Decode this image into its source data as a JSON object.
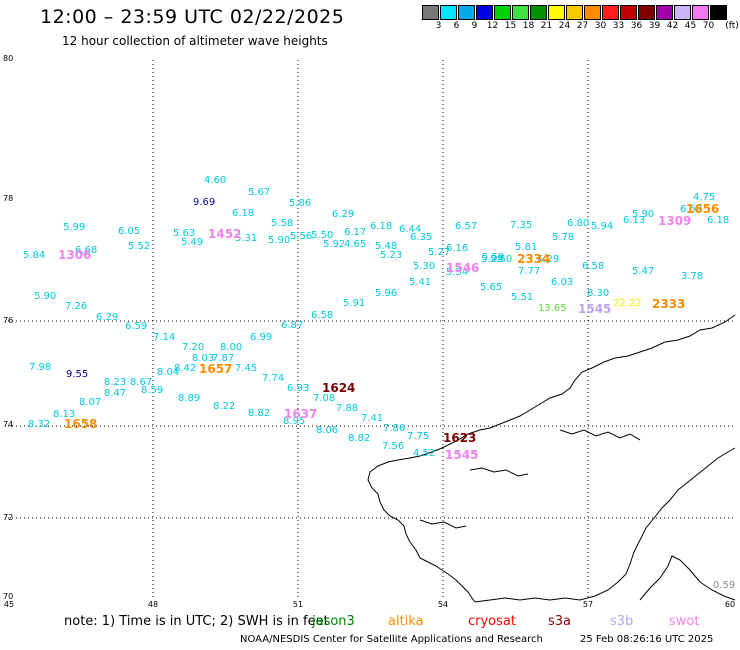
{
  "title": "12:00 – 23:59 UTC 02/22/2025",
  "subtitle": "12 hour collection of altimeter wave heights",
  "legend": {
    "unit": "(ft)",
    "bins": [
      {
        "label": "3",
        "color": "#787878"
      },
      {
        "label": "6",
        "color": "#00e4ff"
      },
      {
        "label": "9",
        "color": "#00a8f0"
      },
      {
        "label": "12",
        "color": "#0000e0"
      },
      {
        "label": "15",
        "color": "#00d000"
      },
      {
        "label": "18",
        "color": "#40e040"
      },
      {
        "label": "21",
        "color": "#009000"
      },
      {
        "label": "24",
        "color": "#ffff00"
      },
      {
        "label": "27",
        "color": "#f8c800"
      },
      {
        "label": "30",
        "color": "#ff8c00"
      },
      {
        "label": "33",
        "color": "#ff1e1e"
      },
      {
        "label": "36",
        "color": "#c00000"
      },
      {
        "label": "39",
        "color": "#800000"
      },
      {
        "label": "42",
        "color": "#a000a8"
      },
      {
        "label": "45",
        "color": "#ccb4f8"
      },
      {
        "label": "70",
        "color": "#f078f0"
      },
      {
        "label": "",
        "color": "#000000"
      }
    ]
  },
  "axes": {
    "lat_labels": [
      "80",
      "78",
      "76",
      "74",
      "72",
      "70"
    ],
    "lon_labels": [
      "45",
      "48",
      "51",
      "54",
      "57",
      "60"
    ]
  },
  "colors": {
    "cyan": "#00c8e0",
    "navy": "#00009c",
    "green": "#5adc3c",
    "orange": "#ff8c00",
    "yellow": "#f0f000",
    "maroon": "#7a0000",
    "pink": "#ee82ee",
    "lavender": "#b9a4f4",
    "gray": "#8c8c8c"
  },
  "wave_heights": [
    {
      "v": "4.60",
      "c": "cyan"
    },
    {
      "v": "5.67",
      "c": "cyan"
    },
    {
      "v": "9.69",
      "c": "navy"
    },
    {
      "v": "6.18",
      "c": "cyan"
    },
    {
      "v": "5.86",
      "c": "cyan"
    },
    {
      "v": "5.58",
      "c": "cyan"
    },
    {
      "v": "6.29",
      "c": "cyan"
    },
    {
      "v": "4.75",
      "c": "cyan"
    },
    {
      "v": "6.52",
      "c": "cyan"
    },
    {
      "v": "5.90",
      "c": "cyan"
    },
    {
      "v": "6.80",
      "c": "cyan"
    },
    {
      "v": "7.35",
      "c": "cyan"
    },
    {
      "v": "5.94",
      "c": "cyan"
    },
    {
      "v": "6.13",
      "c": "cyan"
    },
    {
      "v": "6.18",
      "c": "cyan"
    },
    {
      "v": "5.99",
      "c": "cyan"
    },
    {
      "v": "6.05",
      "c": "cyan"
    },
    {
      "v": "5.63",
      "c": "cyan"
    },
    {
      "v": "5.31",
      "c": "cyan"
    },
    {
      "v": "5.90",
      "c": "cyan"
    },
    {
      "v": "5.56",
      "c": "cyan"
    },
    {
      "v": "5.50",
      "c": "cyan"
    },
    {
      "v": "6.17",
      "c": "cyan"
    },
    {
      "v": "6.18",
      "c": "cyan"
    },
    {
      "v": "6.44",
      "c": "cyan"
    },
    {
      "v": "6.57",
      "c": "cyan"
    },
    {
      "v": "5.78",
      "c": "cyan"
    },
    {
      "v": "6.68",
      "c": "cyan"
    },
    {
      "v": "5.52",
      "c": "cyan"
    },
    {
      "v": "5.49",
      "c": "cyan"
    },
    {
      "v": "5.92",
      "c": "cyan"
    },
    {
      "v": "4.65",
      "c": "cyan"
    },
    {
      "v": "5.48",
      "c": "cyan"
    },
    {
      "v": "6.35",
      "c": "cyan"
    },
    {
      "v": "6.16",
      "c": "cyan"
    },
    {
      "v": "5.81",
      "c": "cyan"
    },
    {
      "v": "5.84",
      "c": "cyan"
    },
    {
      "v": "5.23",
      "c": "cyan"
    },
    {
      "v": "5.27",
      "c": "cyan"
    },
    {
      "v": "5.59",
      "c": "cyan"
    },
    {
      "v": "5.50",
      "c": "cyan"
    },
    {
      "v": "5.28",
      "c": "cyan"
    },
    {
      "v": "6.29",
      "c": "cyan"
    },
    {
      "v": "5.30",
      "c": "cyan"
    },
    {
      "v": "5.54",
      "c": "cyan"
    },
    {
      "v": "7.77",
      "c": "cyan"
    },
    {
      "v": "6.58",
      "c": "cyan"
    },
    {
      "v": "5.47",
      "c": "cyan"
    },
    {
      "v": "3.78",
      "c": "cyan"
    },
    {
      "v": "5.41",
      "c": "cyan"
    },
    {
      "v": "5.65",
      "c": "cyan"
    },
    {
      "v": "6.03",
      "c": "cyan"
    },
    {
      "v": "5.90",
      "c": "cyan"
    },
    {
      "v": "5.96",
      "c": "cyan"
    },
    {
      "v": "5.51",
      "c": "cyan"
    },
    {
      "v": "8.30",
      "c": "cyan"
    },
    {
      "v": "13.65",
      "c": "green"
    },
    {
      "v": "22.22",
      "c": "yellow"
    },
    {
      "v": "7.26",
      "c": "cyan"
    },
    {
      "v": "5.91",
      "c": "cyan"
    },
    {
      "v": "6.29",
      "c": "cyan"
    },
    {
      "v": "6.58",
      "c": "cyan"
    },
    {
      "v": "6.59",
      "c": "cyan"
    },
    {
      "v": "6.87",
      "c": "cyan"
    },
    {
      "v": "7.14",
      "c": "cyan"
    },
    {
      "v": "6.99",
      "c": "cyan"
    },
    {
      "v": "7.20",
      "c": "cyan"
    },
    {
      "v": "8.00",
      "c": "cyan"
    },
    {
      "v": "8.03",
      "c": "cyan"
    },
    {
      "v": "7.87",
      "c": "cyan"
    },
    {
      "v": "7.98",
      "c": "cyan"
    },
    {
      "v": "8.42",
      "c": "cyan"
    },
    {
      "v": "7.45",
      "c": "cyan"
    },
    {
      "v": "9.55",
      "c": "navy"
    },
    {
      "v": "8.04",
      "c": "cyan"
    },
    {
      "v": "8.23",
      "c": "cyan"
    },
    {
      "v": "8.67",
      "c": "cyan"
    },
    {
      "v": "7.74",
      "c": "cyan"
    },
    {
      "v": "8.47",
      "c": "cyan"
    },
    {
      "v": "8.59",
      "c": "cyan"
    },
    {
      "v": "6.93",
      "c": "cyan"
    },
    {
      "v": "8.89",
      "c": "cyan"
    },
    {
      "v": "7.08",
      "c": "cyan"
    },
    {
      "v": "8.07",
      "c": "cyan"
    },
    {
      "v": "8.22",
      "c": "cyan"
    },
    {
      "v": "7.88",
      "c": "cyan"
    },
    {
      "v": "8.13",
      "c": "cyan"
    },
    {
      "v": "8.82",
      "c": "cyan"
    },
    {
      "v": "7.41",
      "c": "cyan"
    },
    {
      "v": "8.32",
      "c": "cyan"
    },
    {
      "v": "8.95",
      "c": "cyan"
    },
    {
      "v": "8.06",
      "c": "cyan"
    },
    {
      "v": "7.86",
      "c": "cyan"
    },
    {
      "v": "8.82",
      "c": "cyan"
    },
    {
      "v": "7.75",
      "c": "cyan"
    },
    {
      "v": "7.56",
      "c": "cyan"
    },
    {
      "v": "4.52",
      "c": "cyan"
    },
    {
      "v": "0.59",
      "c": "gray"
    }
  ],
  "pass_times": [
    {
      "t": "1656",
      "c": "orange"
    },
    {
      "t": "1309",
      "c": "pink"
    },
    {
      "t": "1452",
      "c": "pink"
    },
    {
      "t": "1306",
      "c": "pink"
    },
    {
      "t": "1546",
      "c": "pink"
    },
    {
      "t": "2334",
      "c": "orange"
    },
    {
      "t": "1545",
      "c": "lavender"
    },
    {
      "t": "2333",
      "c": "orange"
    },
    {
      "t": "1657",
      "c": "orange"
    },
    {
      "t": "1624",
      "c": "maroon"
    },
    {
      "t": "1637",
      "c": "pink"
    },
    {
      "t": "1658",
      "c": "orange"
    },
    {
      "t": "1623",
      "c": "maroon"
    },
    {
      "t": "1545",
      "c": "pink"
    }
  ],
  "footer": {
    "note": "note:  1) Time is in UTC; 2) SWH is in feet",
    "satellites": [
      {
        "name": "jason3",
        "color": "#008000"
      },
      {
        "name": "altika",
        "color": "#ff8c00"
      },
      {
        "name": "cryosat",
        "color": "#ff0000"
      },
      {
        "name": "s3a",
        "color": "#8b0000"
      },
      {
        "name": "s3b",
        "color": "#b9a4f4"
      },
      {
        "name": "swot",
        "color": "#ee82ee"
      }
    ],
    "credit": "NOAA/NESDIS Center for Satellite Applications and Research",
    "timestamp": "25 Feb 08:26:16 UTC 2025"
  }
}
